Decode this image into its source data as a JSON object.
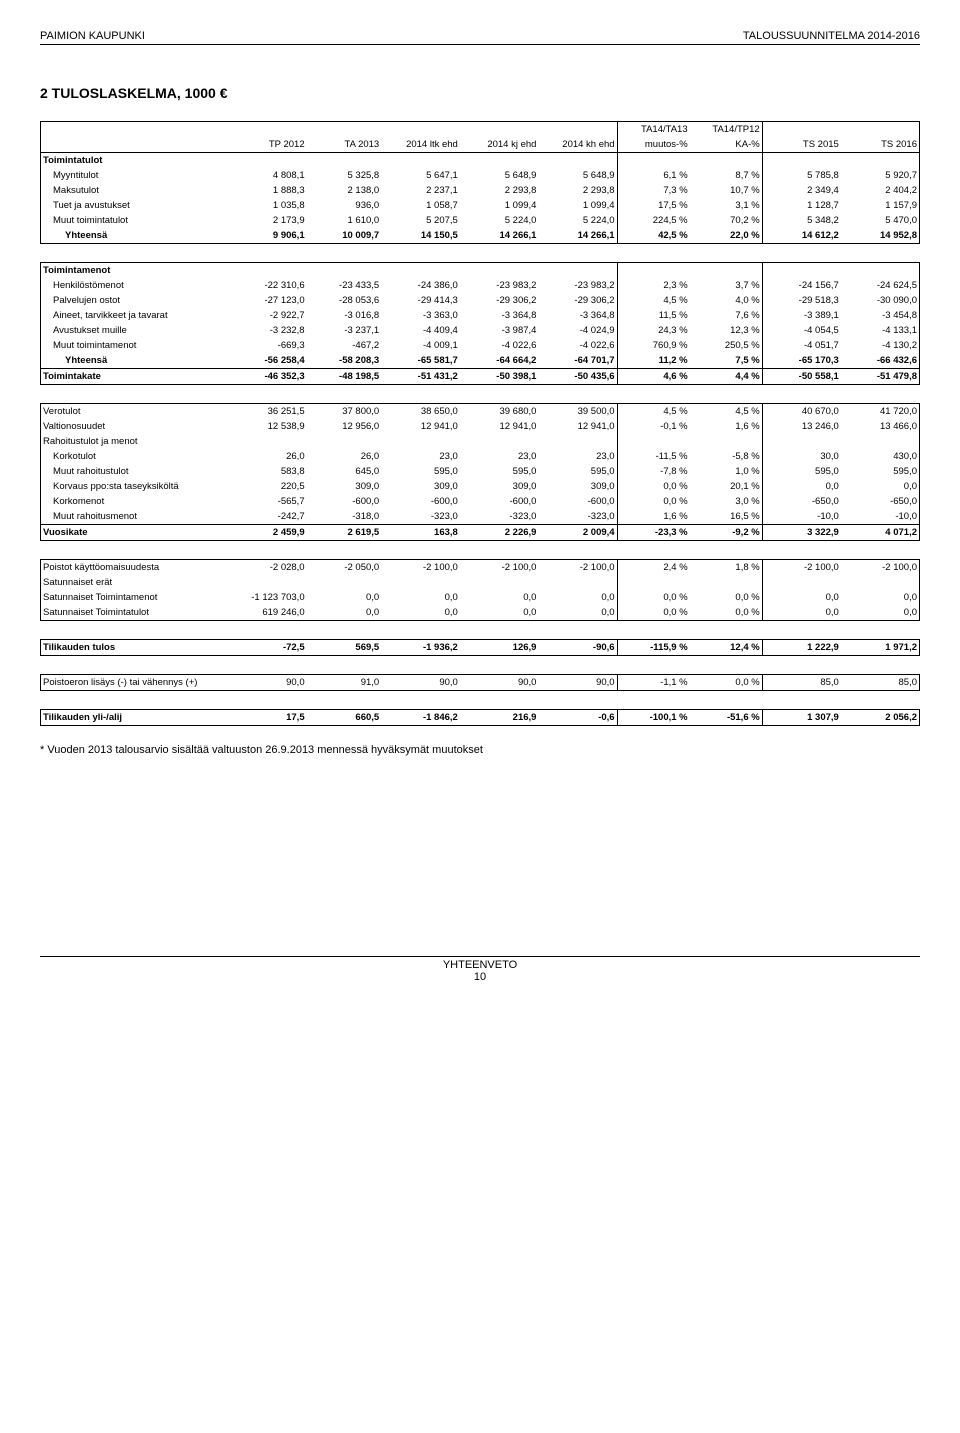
{
  "header": {
    "left": "PAIMION KAUPUNKI",
    "right": "TALOUSSUUNNITELMA 2014-2016"
  },
  "title": "2 TULOSLASKELMA, 1000 €",
  "footnote": "* Vuoden 2013 talousarvio sisältää valtuuston 26.9.2013 mennessä hyväksymät muutokset",
  "footer": {
    "line1": "YHTEENVETO",
    "line2": "10"
  },
  "columns": {
    "label": "",
    "c1": "TP 2012",
    "c2": "TA 2013",
    "c3": "2014 ltk ehd",
    "c4": "2014 kj ehd",
    "c5": "2014 kh ehd",
    "c6a": "TA14/TA13",
    "c6b": "muutos-%",
    "c7a": "TA14/TP12",
    "c7b": "KA-%",
    "c8": "TS 2015",
    "c9": "TS 2016"
  },
  "col_widths": [
    "190",
    "74",
    "74",
    "78",
    "78",
    "78",
    "72",
    "72",
    "78",
    "78"
  ],
  "sections": [
    {
      "head": "Toimintatulot",
      "rows": [
        {
          "label": "Myyntitulot",
          "indent": 1,
          "v": [
            "4 808,1",
            "5 325,8",
            "5 647,1",
            "5 648,9",
            "5 648,9",
            "6,1 %",
            "8,7 %",
            "5 785,8",
            "5 920,7"
          ]
        },
        {
          "label": "Maksutulot",
          "indent": 1,
          "v": [
            "1 888,3",
            "2 138,0",
            "2 237,1",
            "2 293,8",
            "2 293,8",
            "7,3 %",
            "10,7 %",
            "2 349,4",
            "2 404,2"
          ]
        },
        {
          "label": "Tuet ja avustukset",
          "indent": 1,
          "v": [
            "1 035,8",
            "936,0",
            "1 058,7",
            "1 099,4",
            "1 099,4",
            "17,5 %",
            "3,1 %",
            "1 128,7",
            "1 157,9"
          ]
        },
        {
          "label": "Muut toimintatulot",
          "indent": 1,
          "v": [
            "2 173,9",
            "1 610,0",
            "5 207,5",
            "5 224,0",
            "5 224,0",
            "224,5 %",
            "70,2 %",
            "5 348,2",
            "5 470,0"
          ]
        }
      ],
      "yht": {
        "label": "Yhteensä",
        "indent": 2,
        "v": [
          "9 906,1",
          "10 009,7",
          "14 150,5",
          "14 266,1",
          "14 266,1",
          "42,5 %",
          "22,0 %",
          "14 612,2",
          "14 952,8"
        ]
      }
    },
    {
      "head": "Toimintamenot",
      "rows": [
        {
          "label": "Henkilöstömenot",
          "indent": 1,
          "v": [
            "-22 310,6",
            "-23 433,5",
            "-24 386,0",
            "-23 983,2",
            "-23 983,2",
            "2,3 %",
            "3,7 %",
            "-24 156,7",
            "-24 624,5"
          ]
        },
        {
          "label": "Palvelujen ostot",
          "indent": 1,
          "v": [
            "-27 123,0",
            "-28 053,6",
            "-29 414,3",
            "-29 306,2",
            "-29 306,2",
            "4,5 %",
            "4,0 %",
            "-29 518,3",
            "-30 090,0"
          ]
        },
        {
          "label": "Aineet, tarvikkeet ja tavarat",
          "indent": 1,
          "v": [
            "-2 922,7",
            "-3 016,8",
            "-3 363,0",
            "-3 364,8",
            "-3 364,8",
            "11,5 %",
            "7,6 %",
            "-3 389,1",
            "-3 454,8"
          ]
        },
        {
          "label": "Avustukset muille",
          "indent": 1,
          "v": [
            "-3 232,8",
            "-3 237,1",
            "-4 409,4",
            "-3 987,4",
            "-4 024,9",
            "24,3 %",
            "12,3 %",
            "-4 054,5",
            "-4 133,1"
          ]
        },
        {
          "label": "Muut toimintamenot",
          "indent": 1,
          "v": [
            "-669,3",
            "-467,2",
            "-4 009,1",
            "-4 022,6",
            "-4 022,6",
            "760,9 %",
            "250,5 %",
            "-4 051,7",
            "-4 130,2"
          ]
        }
      ],
      "yht": {
        "label": "Yhteensä",
        "indent": 2,
        "v": [
          "-56 258,4",
          "-58 208,3",
          "-65 581,7",
          "-64 664,2",
          "-64 701,7",
          "11,2 %",
          "7,5 %",
          "-65 170,3",
          "-66 432,6"
        ]
      },
      "total": {
        "label": "Toimintakate",
        "indent": 0,
        "v": [
          "-46 352,3",
          "-48 198,5",
          "-51 431,2",
          "-50 398,1",
          "-50 435,6",
          "4,6 %",
          "4,4 %",
          "-50 558,1",
          "-51 479,8"
        ]
      }
    }
  ],
  "block3": {
    "rows_top": [
      {
        "label": "Verotulot",
        "indent": 0,
        "v": [
          "36 251,5",
          "37 800,0",
          "38 650,0",
          "39 680,0",
          "39 500,0",
          "4,5 %",
          "4,5 %",
          "40 670,0",
          "41 720,0"
        ]
      },
      {
        "label": "Valtionosuudet",
        "indent": 0,
        "v": [
          "12 538,9",
          "12 956,0",
          "12 941,0",
          "12 941,0",
          "12 941,0",
          "-0,1 %",
          "1,6 %",
          "13 246,0",
          "13 466,0"
        ]
      }
    ],
    "sub_head": "Rahoitustulot ja menot",
    "rows_mid": [
      {
        "label": "Korkotulot",
        "indent": 1,
        "v": [
          "26,0",
          "26,0",
          "23,0",
          "23,0",
          "23,0",
          "-11,5 %",
          "-5,8 %",
          "30,0",
          "430,0"
        ]
      },
      {
        "label": "Muut rahoitustulot",
        "indent": 1,
        "v": [
          "583,8",
          "645,0",
          "595,0",
          "595,0",
          "595,0",
          "-7,8 %",
          "1,0 %",
          "595,0",
          "595,0"
        ]
      },
      {
        "label": "Korvaus ppo:sta taseyksiköltä",
        "indent": 1,
        "v": [
          "220,5",
          "309,0",
          "309,0",
          "309,0",
          "309,0",
          "0,0 %",
          "20,1 %",
          "0,0",
          "0,0"
        ]
      },
      {
        "label": "Korkomenot",
        "indent": 1,
        "v": [
          "-565,7",
          "-600,0",
          "-600,0",
          "-600,0",
          "-600,0",
          "0,0 %",
          "3,0 %",
          "-650,0",
          "-650,0"
        ]
      },
      {
        "label": "Muut rahoitusmenot",
        "indent": 1,
        "v": [
          "-242,7",
          "-318,0",
          "-323,0",
          "-323,0",
          "-323,0",
          "1,6 %",
          "16,5 %",
          "-10,0",
          "-10,0"
        ]
      }
    ],
    "total": {
      "label": "Vuosikate",
      "indent": 0,
      "v": [
        "2 459,9",
        "2 619,5",
        "163,8",
        "2 226,9",
        "2 009,4",
        "-23,3 %",
        "-9,2 %",
        "3 322,9",
        "4 071,2"
      ]
    }
  },
  "block4": {
    "rows": [
      {
        "label": "Poistot käyttöomaisuudesta",
        "indent": 0,
        "v": [
          "-2 028,0",
          "-2 050,0",
          "-2 100,0",
          "-2 100,0",
          "-2 100,0",
          "2,4 %",
          "1,8 %",
          "-2 100,0",
          "-2 100,0"
        ]
      },
      {
        "label": "Satunnaiset erät",
        "indent": 0,
        "v": [
          "",
          "",
          "",
          "",
          "",
          "",
          "",
          "",
          ""
        ]
      },
      {
        "label": "Satunnaiset Toimintamenot",
        "indent": 0,
        "v": [
          "-1 123 703,0",
          "0,0",
          "0,0",
          "0,0",
          "0,0",
          "0,0 %",
          "0,0 %",
          "0,0",
          "0,0"
        ]
      },
      {
        "label": "Satunnaiset Toimintatulot",
        "indent": 0,
        "v": [
          "619 246,0",
          "0,0",
          "0,0",
          "0,0",
          "0,0",
          "0,0 %",
          "0,0 %",
          "0,0",
          "0,0"
        ]
      }
    ]
  },
  "tilikauden_tulos": {
    "label": "Tilikauden tulos",
    "v": [
      "-72,5",
      "569,5",
      "-1 936,2",
      "126,9",
      "-90,6",
      "-115,9 %",
      "12,4 %",
      "1 222,9",
      "1 971,2"
    ]
  },
  "poistoeron": {
    "label": "Poistoeron lisäys (-) tai vähennys (+)",
    "v": [
      "90,0",
      "91,0",
      "90,0",
      "90,0",
      "90,0",
      "-1,1 %",
      "0,0 %",
      "85,0",
      "85,0"
    ]
  },
  "tilikauden_yli": {
    "label": "Tilikauden yli-/alij",
    "v": [
      "17,5",
      "660,5",
      "-1 846,2",
      "216,9",
      "-0,6",
      "-100,1 %",
      "-51,6 %",
      "1 307,9",
      "2 056,2"
    ]
  }
}
